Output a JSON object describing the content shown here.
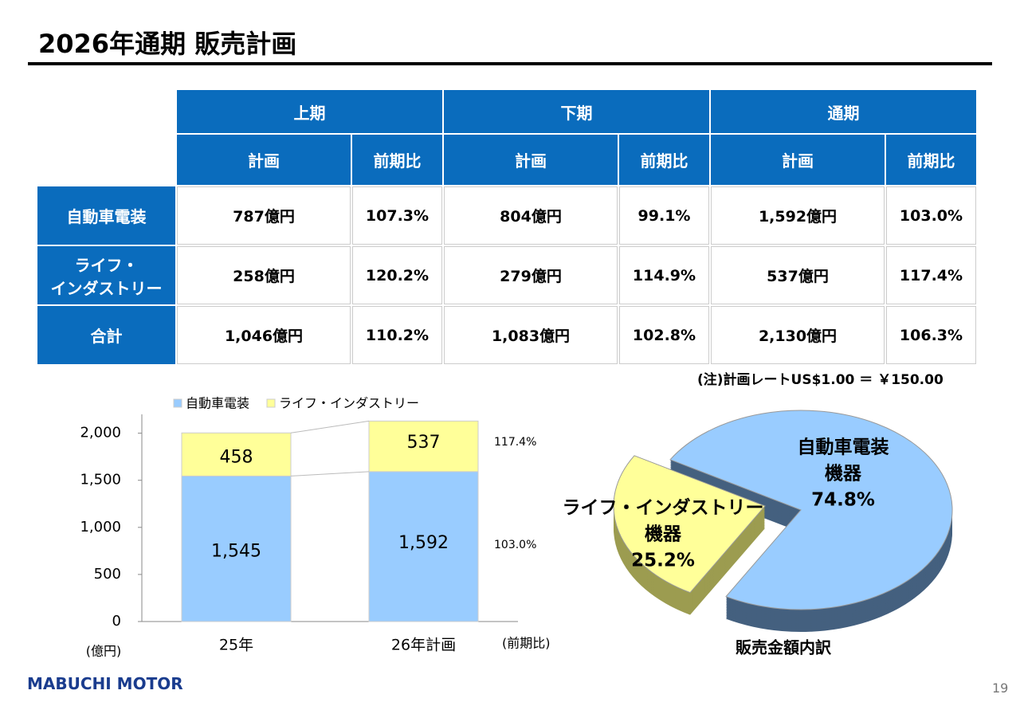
{
  "title": "2026年通期 販売計画",
  "table": {
    "groups": [
      "上期",
      "下期",
      "通期"
    ],
    "subheaders": [
      "計画",
      "前期比"
    ],
    "rows": [
      {
        "label": [
          "自動車電装"
        ],
        "cells": [
          "787億円",
          "107.3%",
          "804億円",
          "99.1%",
          "1,592億円",
          "103.0%"
        ]
      },
      {
        "label": [
          "ライフ・",
          "インダストリー"
        ],
        "cells": [
          "258億円",
          "120.2%",
          "279億円",
          "114.9%",
          "537億円",
          "117.4%"
        ]
      },
      {
        "label": [
          "合計"
        ],
        "cells": [
          "1,046億円",
          "110.2%",
          "1,083億円",
          "102.8%",
          "2,130億円",
          "106.3%"
        ]
      }
    ]
  },
  "note": "(注)計画レートUS$1.00 ＝ ￥150.00",
  "chart_data": [
    {
      "type": "stacked_bar",
      "y_label": "(億円)",
      "categories": [
        "25年",
        "26年計画"
      ],
      "series": [
        {
          "name": "自動車電装",
          "color": "#99ccff",
          "values": [
            1545,
            1592
          ],
          "value_labels": [
            "1,545",
            "1,592"
          ]
        },
        {
          "name": "ライフ・インダストリー",
          "color": "#ffff99",
          "values": [
            458,
            537
          ]
        }
      ],
      "ylim": [
        0,
        2200
      ],
      "yticks": [
        0,
        500,
        {
          "value": 1000,
          "label": "1,000"
        },
        {
          "value": 1500,
          "label": "1,500"
        },
        {
          "value": 2000,
          "label": "2,000"
        }
      ],
      "annotations": {
        "header": "(前期比)",
        "values": [
          "103.0%",
          "117.4%"
        ]
      }
    },
    {
      "type": "pie",
      "title": "販売金額内訳",
      "categories": [
        [
          "自動車電装",
          "機器"
        ],
        [
          "ライフ・インダストリー",
          "機器"
        ]
      ],
      "values": [
        74.8,
        25.2
      ],
      "value_labels": [
        "74.8%",
        "25.2%"
      ],
      "colors": [
        "#99ccff",
        "#ffff99"
      ]
    }
  ],
  "footer": {
    "logo": "MABUCHI MOTOR",
    "page": "19"
  }
}
